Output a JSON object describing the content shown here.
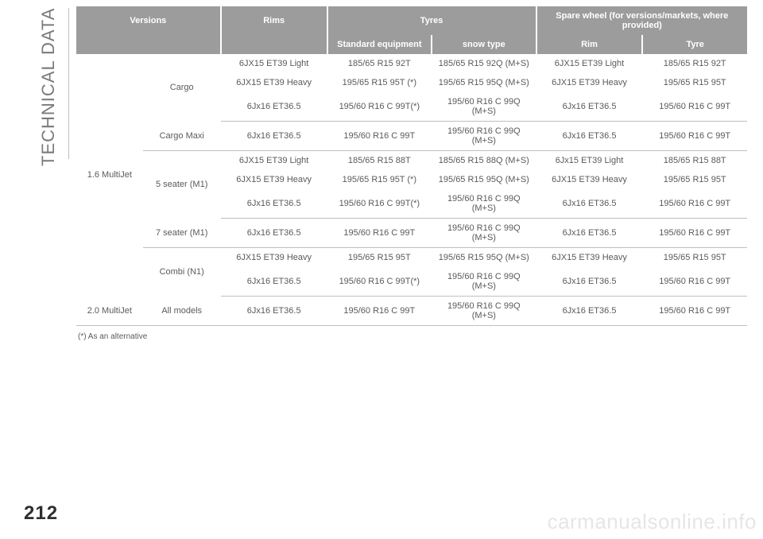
{
  "page_number": "212",
  "sidebar_label": "TECHNICAL DATA",
  "watermark": "carmanualsonline.info",
  "footnote": "(*) As an alternative",
  "headers": {
    "versions": "Versions",
    "rims": "Rims",
    "tyres": "Tyres",
    "spare": "Spare wheel (for versions/markets, where provided)",
    "standard": "Standard equipment",
    "snow": "snow type",
    "rim": "Rim",
    "tyre": "Tyre"
  },
  "engines": {
    "e1": "1.6 MultiJet",
    "e2": "2.0 MultiJet"
  },
  "models": {
    "cargo": "Cargo",
    "cargo_maxi": "Cargo Maxi",
    "five_seater": "5 seater (M1)",
    "seven_seater": "7 seater (M1)",
    "combi": "Combi (N1)",
    "all": "All models"
  },
  "cells": {
    "r1": {
      "rim": "6JX15 ET39 Light",
      "std": "185/65 R15 92T",
      "snow": "185/65 R15 92Q (M+S)",
      "srim": "6JX15 ET39 Light",
      "styre": "185/65 R15 92T"
    },
    "r2": {
      "rim": "6JX15 ET39 Heavy",
      "std": "195/65 R15 95T (*)",
      "snow": "195/65 R15 95Q (M+S)",
      "srim": "6JX15 ET39 Heavy",
      "styre": "195/65 R15 95T"
    },
    "r3": {
      "rim": "6Jx16 ET36.5",
      "std": "195/60 R16 C 99T(*)",
      "snow": "195/60 R16 C 99Q (M+S)",
      "srim": "6Jx16 ET36.5",
      "styre": "195/60 R16 C 99T"
    },
    "r4": {
      "rim": "6Jx16 ET36.5",
      "std": "195/60 R16 C 99T",
      "snow": "195/60 R16 C 99Q (M+S)",
      "srim": "6Jx16 ET36.5",
      "styre": "195/60 R16 C 99T"
    },
    "r5": {
      "rim": "6JX15 ET39 Light",
      "std": "185/65 R15 88T",
      "snow": "185/65 R15 88Q (M+S)",
      "srim": "6Jx15 ET39 Light",
      "styre": "185/65 R15 88T"
    },
    "r6": {
      "rim": "6JX15 ET39 Heavy",
      "std": "195/65 R15 95T (*)",
      "snow": "195/65 R15 95Q (M+S)",
      "srim": "6JX15 ET39 Heavy",
      "styre": "195/65 R15 95T"
    },
    "r7": {
      "rim": "6Jx16 ET36.5",
      "std": "195/60 R16 C 99T(*)",
      "snow": "195/60 R16 C 99Q (M+S)",
      "srim": "6Jx16 ET36.5",
      "styre": "195/60 R16 C 99T"
    },
    "r8": {
      "rim": "6Jx16 ET36.5",
      "std": "195/60 R16 C 99T",
      "snow": "195/60 R16 C 99Q (M+S)",
      "srim": "6Jx16 ET36.5",
      "styre": "195/60 R16 C 99T"
    },
    "r9": {
      "rim": "6JX15 ET39 Heavy",
      "std": "195/65 R15 95T",
      "snow": "195/65 R15 95Q (M+S)",
      "srim": "6JX15 ET39 Heavy",
      "styre": "195/65 R15 95T"
    },
    "r10": {
      "rim": "6Jx16 ET36.5",
      "std": "195/60 R16 C 99T(*)",
      "snow": "195/60 R16 C 99Q (M+S)",
      "srim": "6Jx16 ET36.5",
      "styre": "195/60 R16 C 99T"
    },
    "r11": {
      "rim": "6Jx16 ET36.5",
      "std": "195/60 R16 C 99T",
      "snow": "195/60 R16 C 99Q (M+S)",
      "srim": "6Jx16 ET36.5",
      "styre": "195/60 R16 C 99T"
    }
  }
}
